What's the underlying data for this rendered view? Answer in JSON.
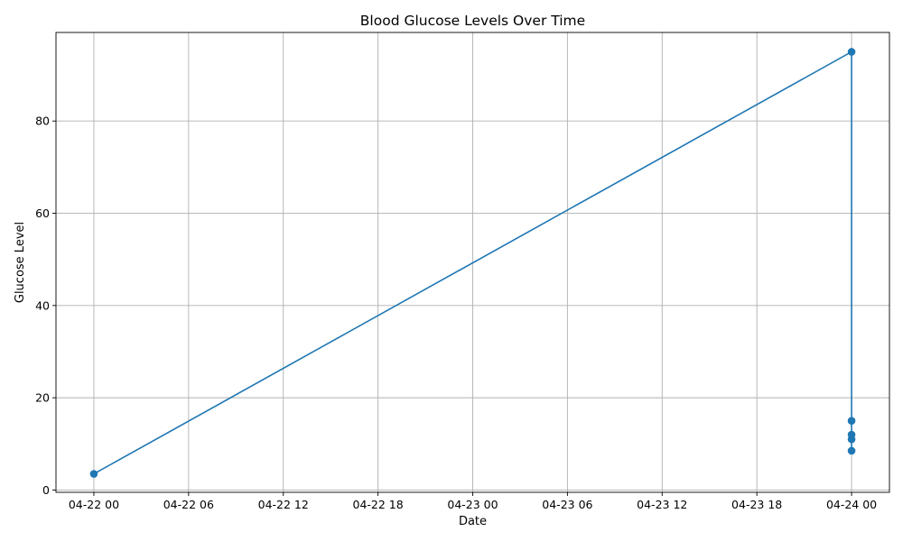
{
  "chart_data": {
    "type": "line",
    "title": "Blood Glucose Levels Over Time",
    "xlabel": "Date",
    "ylabel": "Glucose Level",
    "x_ticks": [
      "04-22 00",
      "04-22 06",
      "04-22 12",
      "04-22 18",
      "04-23 00",
      "04-23 06",
      "04-23 12",
      "04-23 18",
      "04-24 00"
    ],
    "x_tick_hours": [
      0,
      6,
      12,
      18,
      24,
      30,
      36,
      42,
      48
    ],
    "y_ticks": [
      0,
      20,
      40,
      60,
      80
    ],
    "xlim_hours": [
      -2.4,
      50.4
    ],
    "ylim": [
      -0.5,
      99.2
    ],
    "grid": true,
    "color": "#1f77b4",
    "series": [
      {
        "x": [
          "04-22 00",
          "04-24 00",
          "04-24 00",
          "04-24 00",
          "04-24 00",
          "04-24 00"
        ],
        "x_hours": [
          0,
          48,
          48,
          48,
          48,
          48
        ],
        "values": [
          3.5,
          95,
          15,
          12,
          11,
          8.5
        ]
      }
    ]
  }
}
